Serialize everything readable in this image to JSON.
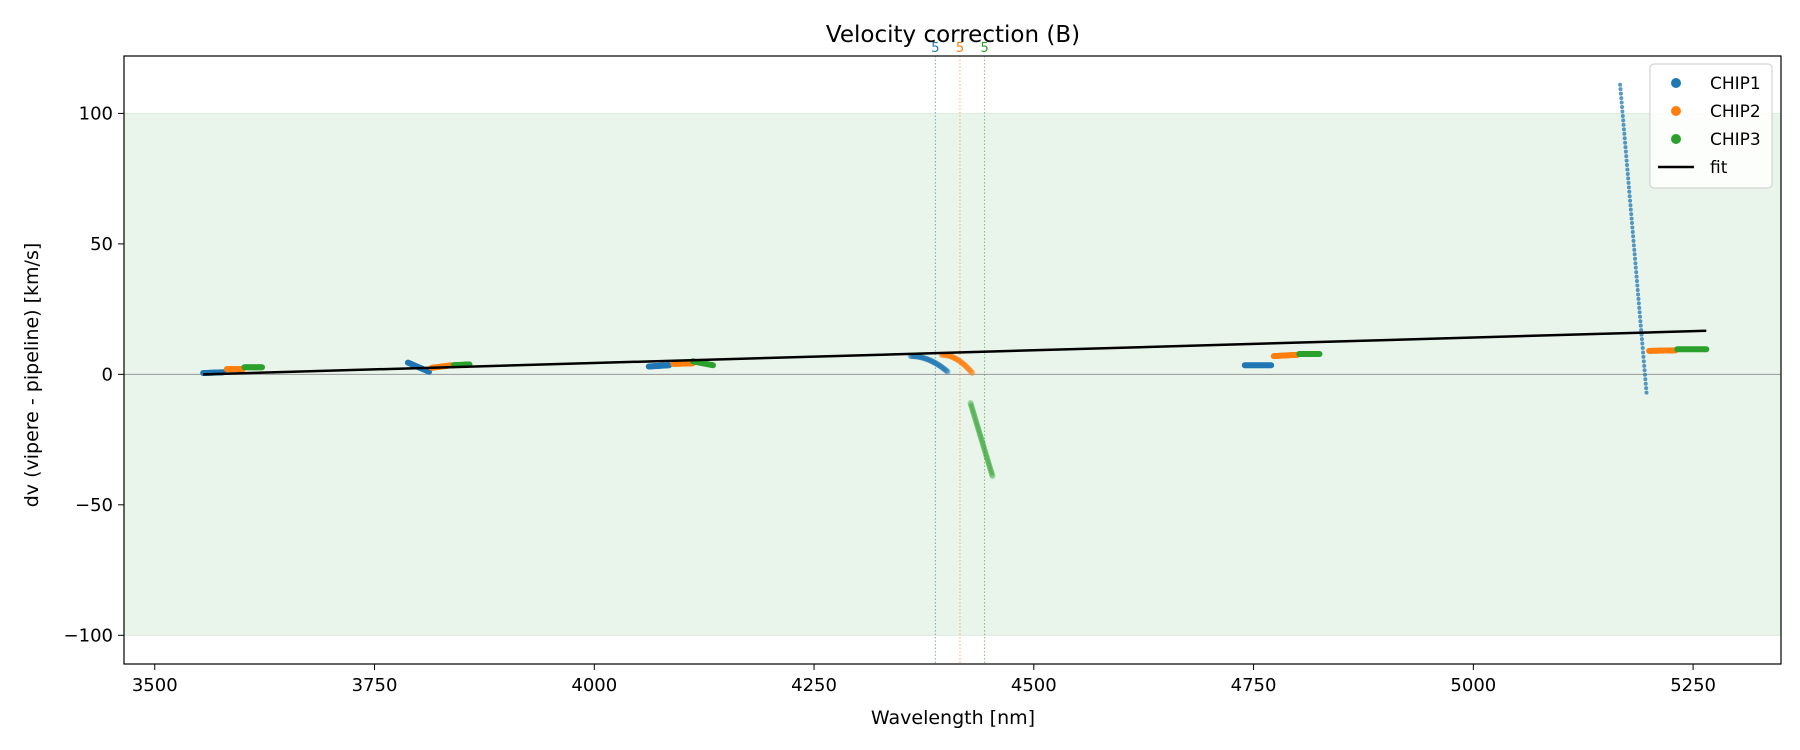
{
  "chart_data": {
    "type": "scatter",
    "title": "Velocity correction (B)",
    "xlabel": "Wavelength [nm]",
    "ylabel": "dv (vipere - pipeline) [km/s]",
    "xlim": [
      3465,
      5350
    ],
    "ylim": [
      -111,
      122
    ],
    "xticks": [
      3500,
      3750,
      4000,
      4250,
      4500,
      4750,
      5000,
      5250
    ],
    "yticks": [
      -100,
      -50,
      0,
      50,
      100
    ],
    "tick_labels_x": [
      "3500",
      "3750",
      "4000",
      "4250",
      "4500",
      "4750",
      "5000",
      "5250"
    ],
    "tick_labels_y": [
      "−100",
      "−50",
      "0",
      "50",
      "100"
    ],
    "acceptance_band": [
      -100,
      100
    ],
    "zero_line": 0,
    "grid": false,
    "legend_position": "top-right",
    "colors": {
      "CHIP1": "#1f77b4",
      "CHIP2": "#ff7f0e",
      "CHIP3": "#2ca02c",
      "fit": "#000000",
      "band": "#e9f4ea",
      "zeroline": "#999999"
    },
    "legend": [
      {
        "label": "CHIP1",
        "kind": "marker",
        "color": "#1f77b4"
      },
      {
        "label": "CHIP2",
        "kind": "marker",
        "color": "#ff7f0e"
      },
      {
        "label": "CHIP3",
        "kind": "marker",
        "color": "#2ca02c"
      },
      {
        "label": "fit",
        "kind": "line",
        "color": "#000000"
      }
    ],
    "fit": {
      "x": [
        3555,
        5265
      ],
      "y": [
        0.0,
        16.7
      ]
    },
    "vlines": [
      {
        "x": 4388,
        "label": "5",
        "color": "#1f77b4"
      },
      {
        "x": 4416,
        "label": "5",
        "color": "#ff7f0e"
      },
      {
        "x": 4444,
        "label": "5",
        "color": "#2ca02c"
      }
    ],
    "series": [
      {
        "name": "CHIP1",
        "color": "#1f77b4",
        "segments": [
          {
            "x0": 3555,
            "x1": 3578,
            "y0": 0.5,
            "y1": 0.8,
            "n": 30,
            "alpha": 1.0,
            "size": 3
          },
          {
            "x0": 3788,
            "x1": 3812,
            "y0": 4.5,
            "y1": 1.0,
            "n": 30,
            "alpha": 1.0,
            "size": 3
          },
          {
            "x0": 4062,
            "x1": 4085,
            "y0": 3.0,
            "y1": 3.5,
            "n": 30,
            "alpha": 1.0,
            "size": 3
          },
          {
            "x0": 4360,
            "x1": 4402,
            "y0": 7.0,
            "y1": 1.0,
            "n": 50,
            "alpha": 0.35,
            "size": 3,
            "curve": "concave"
          },
          {
            "x0": 4740,
            "x1": 4770,
            "y0": 3.5,
            "y1": 3.5,
            "n": 30,
            "alpha": 1.0,
            "size": 3
          },
          {
            "x0": 5167,
            "x1": 5197,
            "y0": 111,
            "y1": -7,
            "n": 70,
            "alpha": 0.75,
            "size": 2
          }
        ]
      },
      {
        "name": "CHIP2",
        "color": "#ff7f0e",
        "segments": [
          {
            "x0": 3582,
            "x1": 3600,
            "y0": 2.0,
            "y1": 2.0,
            "n": 25,
            "alpha": 1.0,
            "size": 3
          },
          {
            "x0": 3815,
            "x1": 3838,
            "y0": 2.5,
            "y1": 3.5,
            "n": 25,
            "alpha": 1.0,
            "size": 3
          },
          {
            "x0": 4090,
            "x1": 4112,
            "y0": 4.0,
            "y1": 4.2,
            "n": 25,
            "alpha": 1.0,
            "size": 3
          },
          {
            "x0": 4395,
            "x1": 4430,
            "y0": 7.5,
            "y1": 0.5,
            "n": 45,
            "alpha": 0.35,
            "size": 3,
            "curve": "concave"
          },
          {
            "x0": 4773,
            "x1": 4800,
            "y0": 7.0,
            "y1": 7.5,
            "n": 30,
            "alpha": 1.0,
            "size": 3
          },
          {
            "x0": 5200,
            "x1": 5230,
            "y0": 9.0,
            "y1": 9.2,
            "n": 30,
            "alpha": 1.0,
            "size": 3
          }
        ]
      },
      {
        "name": "CHIP3",
        "color": "#2ca02c",
        "segments": [
          {
            "x0": 3602,
            "x1": 3622,
            "y0": 2.7,
            "y1": 2.7,
            "n": 25,
            "alpha": 1.0,
            "size": 3
          },
          {
            "x0": 3840,
            "x1": 3858,
            "y0": 3.5,
            "y1": 3.8,
            "n": 25,
            "alpha": 1.0,
            "size": 3
          },
          {
            "x0": 4112,
            "x1": 4135,
            "y0": 5.0,
            "y1": 3.5,
            "n": 25,
            "alpha": 1.0,
            "size": 3
          },
          {
            "x0": 4428,
            "x1": 4453,
            "y0": -11,
            "y1": -39,
            "n": 45,
            "alpha": 0.35,
            "size": 3
          },
          {
            "x0": 4802,
            "x1": 4825,
            "y0": 7.8,
            "y1": 7.8,
            "n": 30,
            "alpha": 1.0,
            "size": 3
          },
          {
            "x0": 5232,
            "x1": 5265,
            "y0": 9.6,
            "y1": 9.6,
            "n": 30,
            "alpha": 1.0,
            "size": 3
          }
        ]
      }
    ]
  }
}
